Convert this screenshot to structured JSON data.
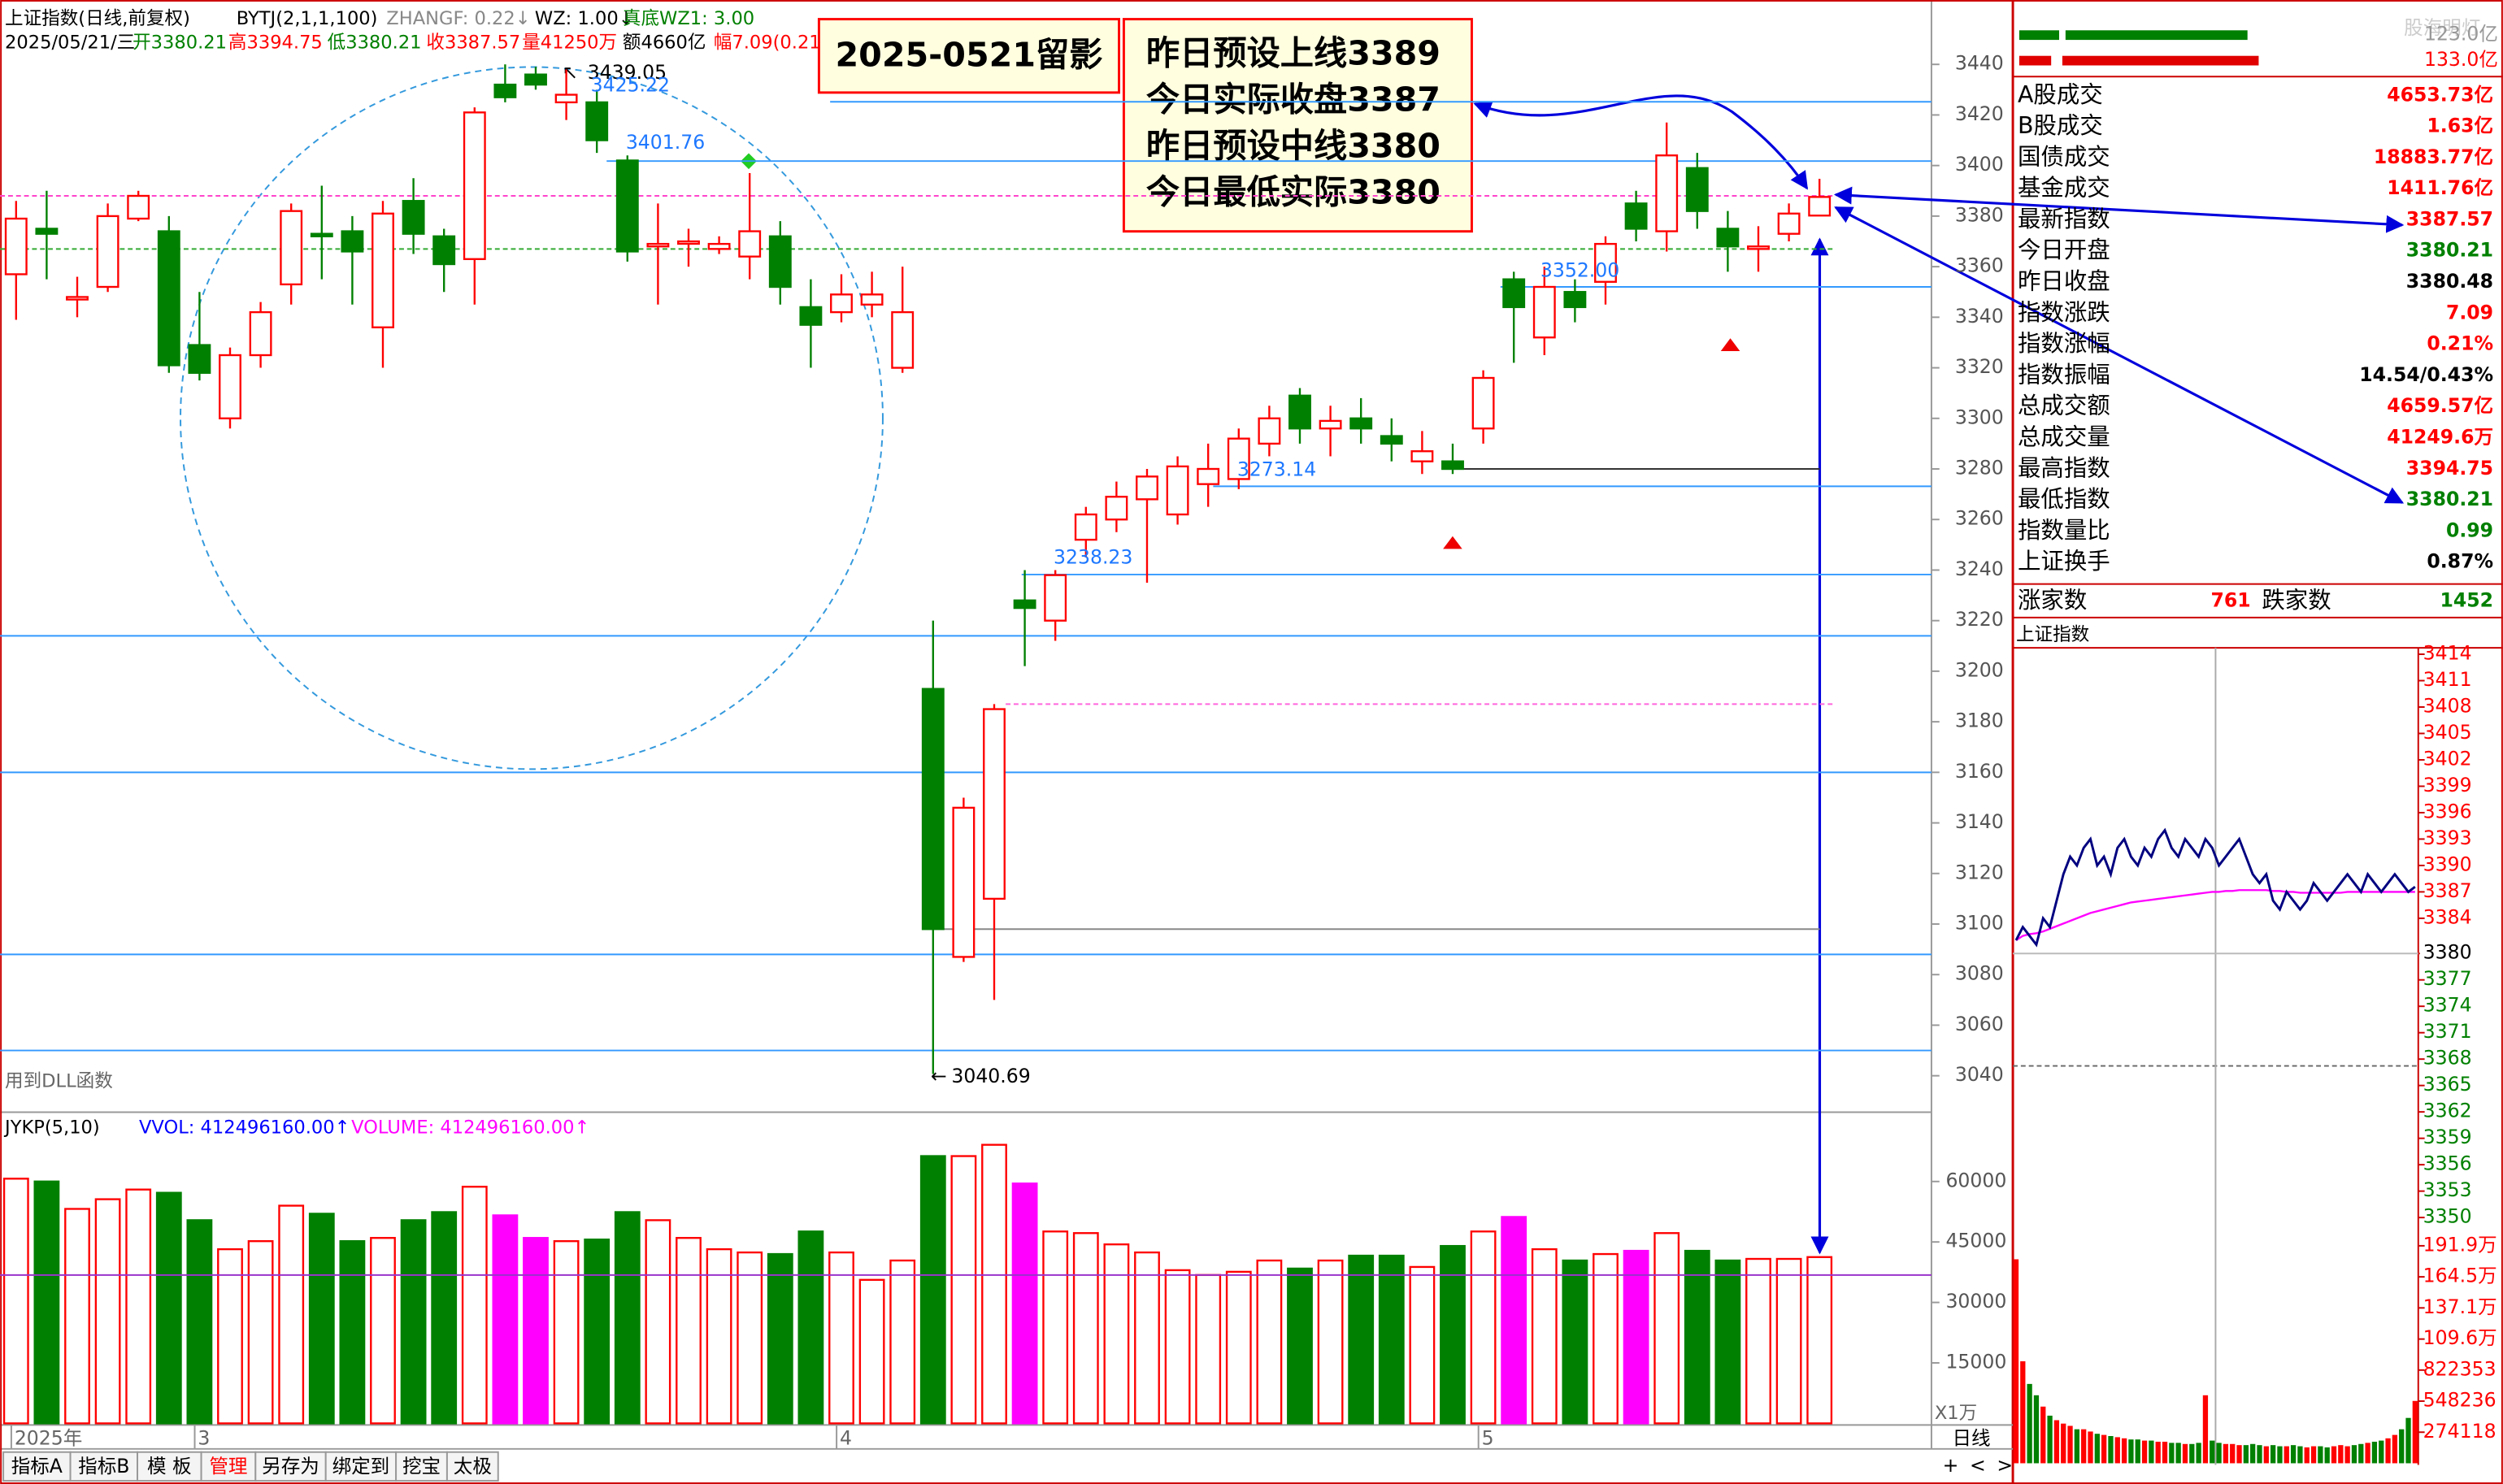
{
  "header": {
    "title": "上证指数(日线,前复权)",
    "indicator": "BYTJ(2,1,1,100)",
    "zhangf": "ZHANGF: 0.22↓",
    "wz": "WZ: 1.00↓",
    "wz1": "真底WZ1: 3.00",
    "date": "2025/05/21/三",
    "open": "开3380.21",
    "high": "高3394.75",
    "low": "低3380.21",
    "close": "收3387.57",
    "volume": "量41250万",
    "amount": "额4660亿",
    "change": "幅7.09(0.21"
  },
  "dll_note": "用到DLL函数",
  "annotations": {
    "photo": "2025-0521留影",
    "lines": [
      "昨日预设上线3389",
      "今日实际收盘3387",
      "昨日预设中线3380",
      "今日最低实际3380"
    ]
  },
  "chart_data": [
    {
      "type": "candlestick",
      "up_color": "#ff0000",
      "down_color": "#008000",
      "categories": [
        "2025年",
        null,
        null,
        null,
        null,
        null,
        "3",
        null,
        null,
        null,
        null,
        null,
        null,
        null,
        null,
        null,
        null,
        null,
        null,
        null,
        null,
        null,
        null,
        null,
        null,
        null,
        null,
        "4",
        null,
        null,
        null,
        null,
        null,
        null,
        null,
        null,
        null,
        null,
        null,
        null,
        null,
        null,
        null,
        null,
        null,
        null,
        null,
        null,
        "5",
        null,
        null,
        null,
        null,
        null,
        null,
        null,
        null,
        null,
        null,
        null
      ],
      "open": [
        3357,
        3375,
        3347,
        3352,
        3379,
        3374,
        3329,
        3300,
        3325,
        3353,
        3373,
        3374,
        3336,
        3386,
        3372,
        3363,
        3432,
        3436,
        3425,
        3425,
        3402,
        3368,
        3370,
        3367,
        3364,
        3372,
        3344,
        3342,
        3345,
        3320,
        3193,
        3087,
        3110,
        3228,
        3220,
        3252,
        3260,
        3268,
        3262,
        3274,
        3276,
        3290,
        3309,
        3296,
        3300,
        3293,
        3283,
        3283,
        3296,
        3355,
        3332,
        3350,
        3354,
        3385,
        3374,
        3399,
        3375,
        3367,
        3373,
        3380.21
      ],
      "high": [
        3386,
        3390,
        3356,
        3385,
        3390,
        3380,
        3350,
        3328,
        3346,
        3385,
        3392,
        3380,
        3386,
        3395,
        3375,
        3423,
        3440,
        3439.05,
        3438,
        3430,
        3404,
        3385,
        3375,
        3372,
        3397,
        3378,
        3355,
        3357,
        3358,
        3360,
        3220,
        3150,
        3187,
        3240,
        3240,
        3265,
        3275,
        3280,
        3285,
        3290,
        3296,
        3305,
        3312,
        3305,
        3308,
        3300,
        3295,
        3290,
        3319,
        3358,
        3360,
        3355,
        3372,
        3390,
        3417,
        3405,
        3382,
        3376,
        3385,
        3394.75
      ],
      "low": [
        3339,
        3355,
        3340,
        3350,
        3378,
        3318,
        3315,
        3296,
        3320,
        3345,
        3355,
        3345,
        3320,
        3365,
        3350,
        3345,
        3425,
        3430,
        3418,
        3405,
        3362,
        3345,
        3360,
        3365,
        3355,
        3345,
        3320,
        3338,
        3340,
        3318,
        3040.69,
        3085,
        3070,
        3202,
        3212,
        3245,
        3255,
        3235,
        3258,
        3265,
        3272,
        3285,
        3290,
        3285,
        3290,
        3283,
        3278,
        3278,
        3290,
        3322,
        3325,
        3338,
        3345,
        3370,
        3366,
        3375,
        3358,
        3358,
        3370,
        3380.21
      ],
      "close": [
        3379,
        3373,
        3348,
        3380,
        3388,
        3321,
        3318,
        3325,
        3342,
        3382,
        3372,
        3366,
        3381,
        3373,
        3361,
        3421,
        3427,
        3432,
        3428,
        3410,
        3366,
        3369,
        3370,
        3369,
        3374,
        3352,
        3337,
        3349,
        3349,
        3342,
        3098,
        3146,
        3185,
        3225,
        3238,
        3262,
        3269,
        3277,
        3281,
        3280,
        3292,
        3300,
        3296,
        3299,
        3296,
        3290,
        3287,
        3280,
        3316,
        3344,
        3352,
        3344,
        3369,
        3375,
        3404,
        3382,
        3368,
        3368,
        3381,
        3387.57
      ],
      "ylim": [
        3030,
        3456
      ],
      "yticks": [
        3040,
        3060,
        3080,
        3100,
        3120,
        3140,
        3160,
        3180,
        3200,
        3220,
        3240,
        3260,
        3280,
        3300,
        3320,
        3340,
        3360,
        3380,
        3400,
        3420,
        3440
      ],
      "price_labels": [
        3439.05,
        3425.22,
        3401.76,
        {
          "value": 3352,
          "label": "3352.00"
        },
        3273.14,
        3238.23,
        3040.69
      ],
      "levels": [
        {
          "value": 3425.22,
          "color": "#3399ff"
        },
        {
          "value": 3401.76,
          "color": "#3399ff"
        },
        {
          "value": 3388,
          "color": "#ff44cc"
        },
        {
          "value": 3367,
          "color": "#33aa33"
        },
        {
          "value": 3352,
          "color": "#3399ff"
        },
        {
          "value": 3280,
          "color": "#333333"
        },
        {
          "value": 3273.14,
          "color": "#3399ff"
        },
        {
          "value": 3238.23,
          "color": "#3399ff"
        },
        {
          "value": 3214,
          "color": "#3399ff"
        },
        {
          "value": 3187,
          "color": "#ff66dd"
        },
        {
          "value": 3160,
          "color": "#3399ff"
        },
        {
          "value": 3098,
          "color": "#888888"
        },
        {
          "value": 3088,
          "color": "#3399ff"
        },
        {
          "value": 3050,
          "color": "#3399ff"
        }
      ]
    },
    {
      "type": "bar",
      "indicator": "JYKP(5,10)",
      "vvol": "VVOL: 412496160.00↑",
      "volume_label": "VOLUME: 412496160.00↑",
      "unit": "X1万",
      "values": [
        60700,
        60000,
        53200,
        55600,
        58000,
        57200,
        50400,
        43200,
        45200,
        54000,
        52000,
        45200,
        46000,
        50400,
        52400,
        58700,
        51600,
        46000,
        45200,
        45600,
        52400,
        50400,
        46000,
        43200,
        42400,
        42000,
        47600,
        42400,
        35600,
        40400,
        66300,
        66300,
        69100,
        59500,
        47600,
        47200,
        44400,
        42400,
        38000,
        36800,
        37600,
        40400,
        38400,
        40400,
        41600,
        41600,
        38800,
        44000,
        47600,
        51200,
        43200,
        40400,
        42000,
        42800,
        47200,
        42800,
        40400,
        40800,
        40800,
        41249.6
      ],
      "colors": [
        "#ff0000",
        "#008000",
        "#ff0000",
        "#ff0000",
        "#ff0000",
        "#008000",
        "#008000",
        "#ff0000",
        "#ff0000",
        "#ff0000",
        "#008000",
        "#008000",
        "#ff0000",
        "#008000",
        "#008000",
        "#ff0000",
        "#ff00ff",
        "#ff00ff",
        "#ff0000",
        "#008000",
        "#008000",
        "#ff0000",
        "#ff0000",
        "#ff0000",
        "#ff0000",
        "#008000",
        "#008000",
        "#ff0000",
        "#ff0000",
        "#ff0000",
        "#008000",
        "#ff0000",
        "#ff0000",
        "#ff00ff",
        "#ff0000",
        "#ff0000",
        "#ff0000",
        "#ff0000",
        "#ff0000",
        "#ff0000",
        "#ff0000",
        "#ff0000",
        "#008000",
        "#ff0000",
        "#008000",
        "#008000",
        "#ff0000",
        "#008000",
        "#ff0000",
        "#ff00ff",
        "#ff0000",
        "#008000",
        "#ff0000",
        "#ff00ff",
        "#ff0000",
        "#008000",
        "#008000",
        "#ff0000",
        "#ff0000",
        "#ff0000"
      ],
      "average": 36800,
      "ylim": [
        0,
        76000
      ],
      "yticks": [
        15000,
        30000,
        45000,
        60000
      ]
    },
    {
      "type": "line",
      "title": "上证指数",
      "color": "#000080",
      "avg_color": "#ff00ff",
      "values": [
        3381.5,
        3383,
        3382,
        3381,
        3384,
        3383,
        3386,
        3389,
        3391,
        3390,
        3392,
        3393,
        3390,
        3391,
        3389,
        3392,
        3393,
        3391,
        3390,
        3392,
        3391,
        3393,
        3394,
        3392,
        3391,
        3393,
        3392,
        3391,
        3393,
        3392,
        3390,
        3391,
        3392,
        3393,
        3391,
        3389,
        3388,
        3389,
        3386,
        3385,
        3387,
        3386,
        3385,
        3386,
        3388,
        3387,
        3386,
        3387,
        3388,
        3389,
        3388,
        3387,
        3389,
        3388,
        3387,
        3388,
        3389,
        3388,
        3387,
        3387.57
      ],
      "avg": [
        3381.5,
        3382,
        3382.2,
        3382.3,
        3382.5,
        3382.8,
        3383.1,
        3383.4,
        3383.7,
        3384,
        3384.3,
        3384.6,
        3384.8,
        3385,
        3385.2,
        3385.4,
        3385.6,
        3385.8,
        3385.9,
        3386,
        3386.1,
        3386.2,
        3386.3,
        3386.4,
        3386.5,
        3386.6,
        3386.7,
        3386.8,
        3386.9,
        3387,
        3387,
        3387.1,
        3387.1,
        3387.2,
        3387.2,
        3387.2,
        3387.2,
        3387.2,
        3387.1,
        3387.1,
        3387,
        3387,
        3386.9,
        3386.9,
        3386.9,
        3386.9,
        3386.9,
        3386.9,
        3386.9,
        3387,
        3387,
        3387,
        3387,
        3387,
        3387,
        3387,
        3387,
        3387,
        3387,
        3387
      ],
      "base": 3380,
      "ylim": [
        3350,
        3414
      ],
      "yticks": [
        3414,
        3411,
        3408,
        3405,
        3402,
        3399,
        3396,
        3393,
        3390,
        3387,
        3384,
        3380,
        3377,
        3374,
        3371,
        3368,
        3365,
        3362,
        3359,
        3356,
        3353,
        3350
      ]
    },
    {
      "type": "bar",
      "values": [
        1800000,
        900000,
        700000,
        600000,
        500000,
        420000,
        380000,
        350000,
        330000,
        300000,
        300000,
        280000,
        260000,
        250000,
        240000,
        230000,
        220000,
        210000,
        210000,
        200000,
        200000,
        190000,
        190000,
        180000,
        180000,
        170000,
        170000,
        180000,
        600000,
        200000,
        180000,
        170000,
        170000,
        160000,
        160000,
        170000,
        160000,
        150000,
        160000,
        150000,
        150000,
        160000,
        150000,
        140000,
        150000,
        150000,
        140000,
        150000,
        160000,
        150000,
        160000,
        170000,
        180000,
        190000,
        200000,
        220000,
        250000,
        300000,
        400000,
        550000
      ],
      "ylim": [
        0,
        2070000
      ],
      "yticks": [
        {
          "value": 1919000,
          "label": "191.9万"
        },
        {
          "value": 1645000,
          "label": "164.5万"
        },
        {
          "value": 1371000,
          "label": "137.1万"
        },
        {
          "value": 1096000,
          "label": "109.6万"
        },
        822353,
        548236,
        274118
      ]
    }
  ],
  "info_panel": {
    "watermark": "股海明灯",
    "top_values": [
      "123.0亿",
      "133.0亿"
    ],
    "rows": [
      {
        "label": "A股成交",
        "value": "4653.73亿",
        "color": "#ff0000"
      },
      {
        "label": "B股成交",
        "value": "1.63亿",
        "color": "#ff0000"
      },
      {
        "label": "国债成交",
        "value": "18883.77亿",
        "color": "#ff0000"
      },
      {
        "label": "基金成交",
        "value": "1411.76亿",
        "color": "#ff0000"
      },
      {
        "label": "最新指数",
        "value": "3387.57",
        "color": "#ff0000"
      },
      {
        "label": "今日开盘",
        "value": "3380.21",
        "color": "#008000"
      },
      {
        "label": "昨日收盘",
        "value": "3380.48",
        "color": "#000000"
      },
      {
        "label": "指数涨跌",
        "value": "7.09",
        "color": "#ff0000"
      },
      {
        "label": "指数涨幅",
        "value": "0.21%",
        "color": "#ff0000"
      },
      {
        "label": "指数振幅",
        "value": "14.54/0.43%",
        "color": "#000000"
      },
      {
        "label": "总成交额",
        "value": "4659.57亿",
        "color": "#ff0000"
      },
      {
        "label": "总成交量",
        "value": "41249.6万",
        "color": "#ff0000"
      },
      {
        "label": "最高指数",
        "value": "3394.75",
        "color": "#ff0000"
      },
      {
        "label": "最低指数",
        "value": "3380.21",
        "color": "#008000"
      },
      {
        "label": "指数量比",
        "value": "0.99",
        "color": "#008000"
      },
      {
        "label": "上证换手",
        "value": "0.87%",
        "color": "#000000"
      }
    ],
    "rise_label": "涨家数",
    "rise": 761,
    "fall_label": "跌家数",
    "fall": 1452
  },
  "toolbar": {
    "tabs": [
      "指标A",
      "指标B",
      "模 板",
      "管理",
      "另存为",
      "绑定到",
      "挖宝",
      "太极"
    ],
    "period": "日线",
    "buttons": [
      "+",
      "<",
      ">"
    ]
  }
}
